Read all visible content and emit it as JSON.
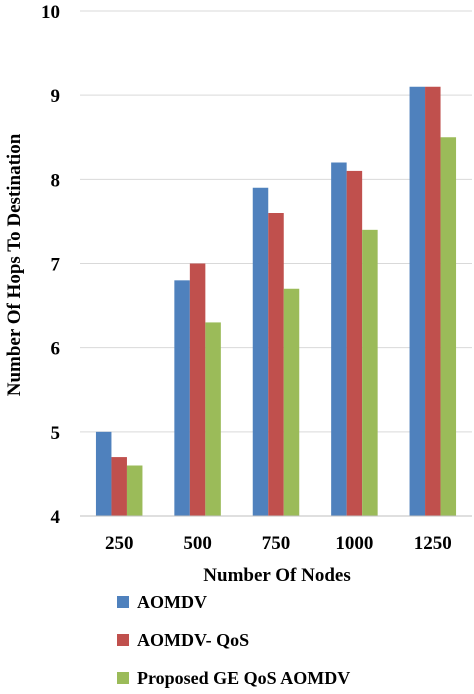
{
  "chart_data": {
    "type": "bar",
    "title": "",
    "xlabel": "Number Of Nodes",
    "ylabel": "Number Of Hops To Destination",
    "categories": [
      "250",
      "500",
      "750",
      "1000",
      "1250"
    ],
    "ylim": [
      4,
      10
    ],
    "yticks": [
      4,
      5,
      6,
      7,
      8,
      9,
      10
    ],
    "grid": "horizontal",
    "legend_position": "bottom",
    "series": [
      {
        "name": "AOMDV",
        "color": "#4f81bd",
        "values": [
          5.0,
          6.8,
          7.9,
          8.2,
          9.1
        ]
      },
      {
        "name": "AOMDV- QoS",
        "color": "#c0504d",
        "values": [
          4.7,
          7.0,
          7.6,
          8.1,
          9.1
        ]
      },
      {
        "name": "Proposed GE QoS AOMDV",
        "color": "#9bbb59",
        "values": [
          4.6,
          6.3,
          6.7,
          7.4,
          8.5
        ]
      }
    ]
  }
}
